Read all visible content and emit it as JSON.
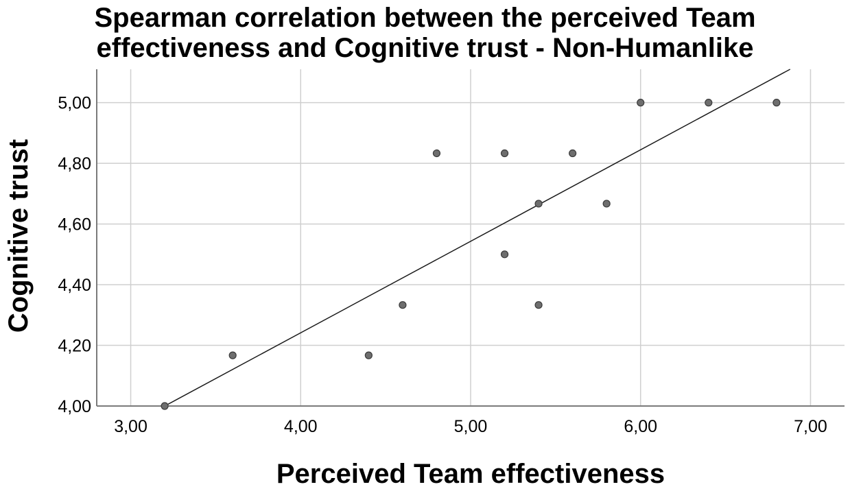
{
  "chart_data": {
    "type": "scatter",
    "title_lines": [
      "Spearman correlation between the perceived Team",
      "effectiveness and Cognitive trust - Non-Humanlike"
    ],
    "xlabel": "Perceived Team effectiveness",
    "ylabel": "Cognitive trust",
    "xlim": [
      2.8,
      7.2
    ],
    "ylim": [
      4.0,
      5.11
    ],
    "x_ticks": [
      "3,00",
      "4,00",
      "5,00",
      "6,00",
      "7,00"
    ],
    "y_ticks": [
      "4,00",
      "4,20",
      "4,40",
      "4,60",
      "4,80",
      "5,00"
    ],
    "grid": true,
    "points": [
      {
        "x": 3.2,
        "y": 4.0
      },
      {
        "x": 3.6,
        "y": 4.167
      },
      {
        "x": 4.4,
        "y": 4.167
      },
      {
        "x": 4.6,
        "y": 4.333
      },
      {
        "x": 4.8,
        "y": 4.833
      },
      {
        "x": 5.2,
        "y": 4.833
      },
      {
        "x": 5.2,
        "y": 4.5
      },
      {
        "x": 5.4,
        "y": 4.667
      },
      {
        "x": 5.4,
        "y": 4.333
      },
      {
        "x": 5.6,
        "y": 4.833
      },
      {
        "x": 5.8,
        "y": 4.667
      },
      {
        "x": 6.0,
        "y": 5.0
      },
      {
        "x": 6.4,
        "y": 5.0
      },
      {
        "x": 6.8,
        "y": 5.0
      }
    ],
    "fit_line": {
      "x": [
        3.2,
        6.88
      ],
      "y": [
        4.0,
        5.11
      ]
    },
    "colors": {
      "point_fill": "#6e6e6e",
      "point_stroke": "#3a3a3a",
      "grid": "#cfcfcf",
      "axis": "#7a7a7a",
      "fit": "#1a1a1a"
    }
  }
}
